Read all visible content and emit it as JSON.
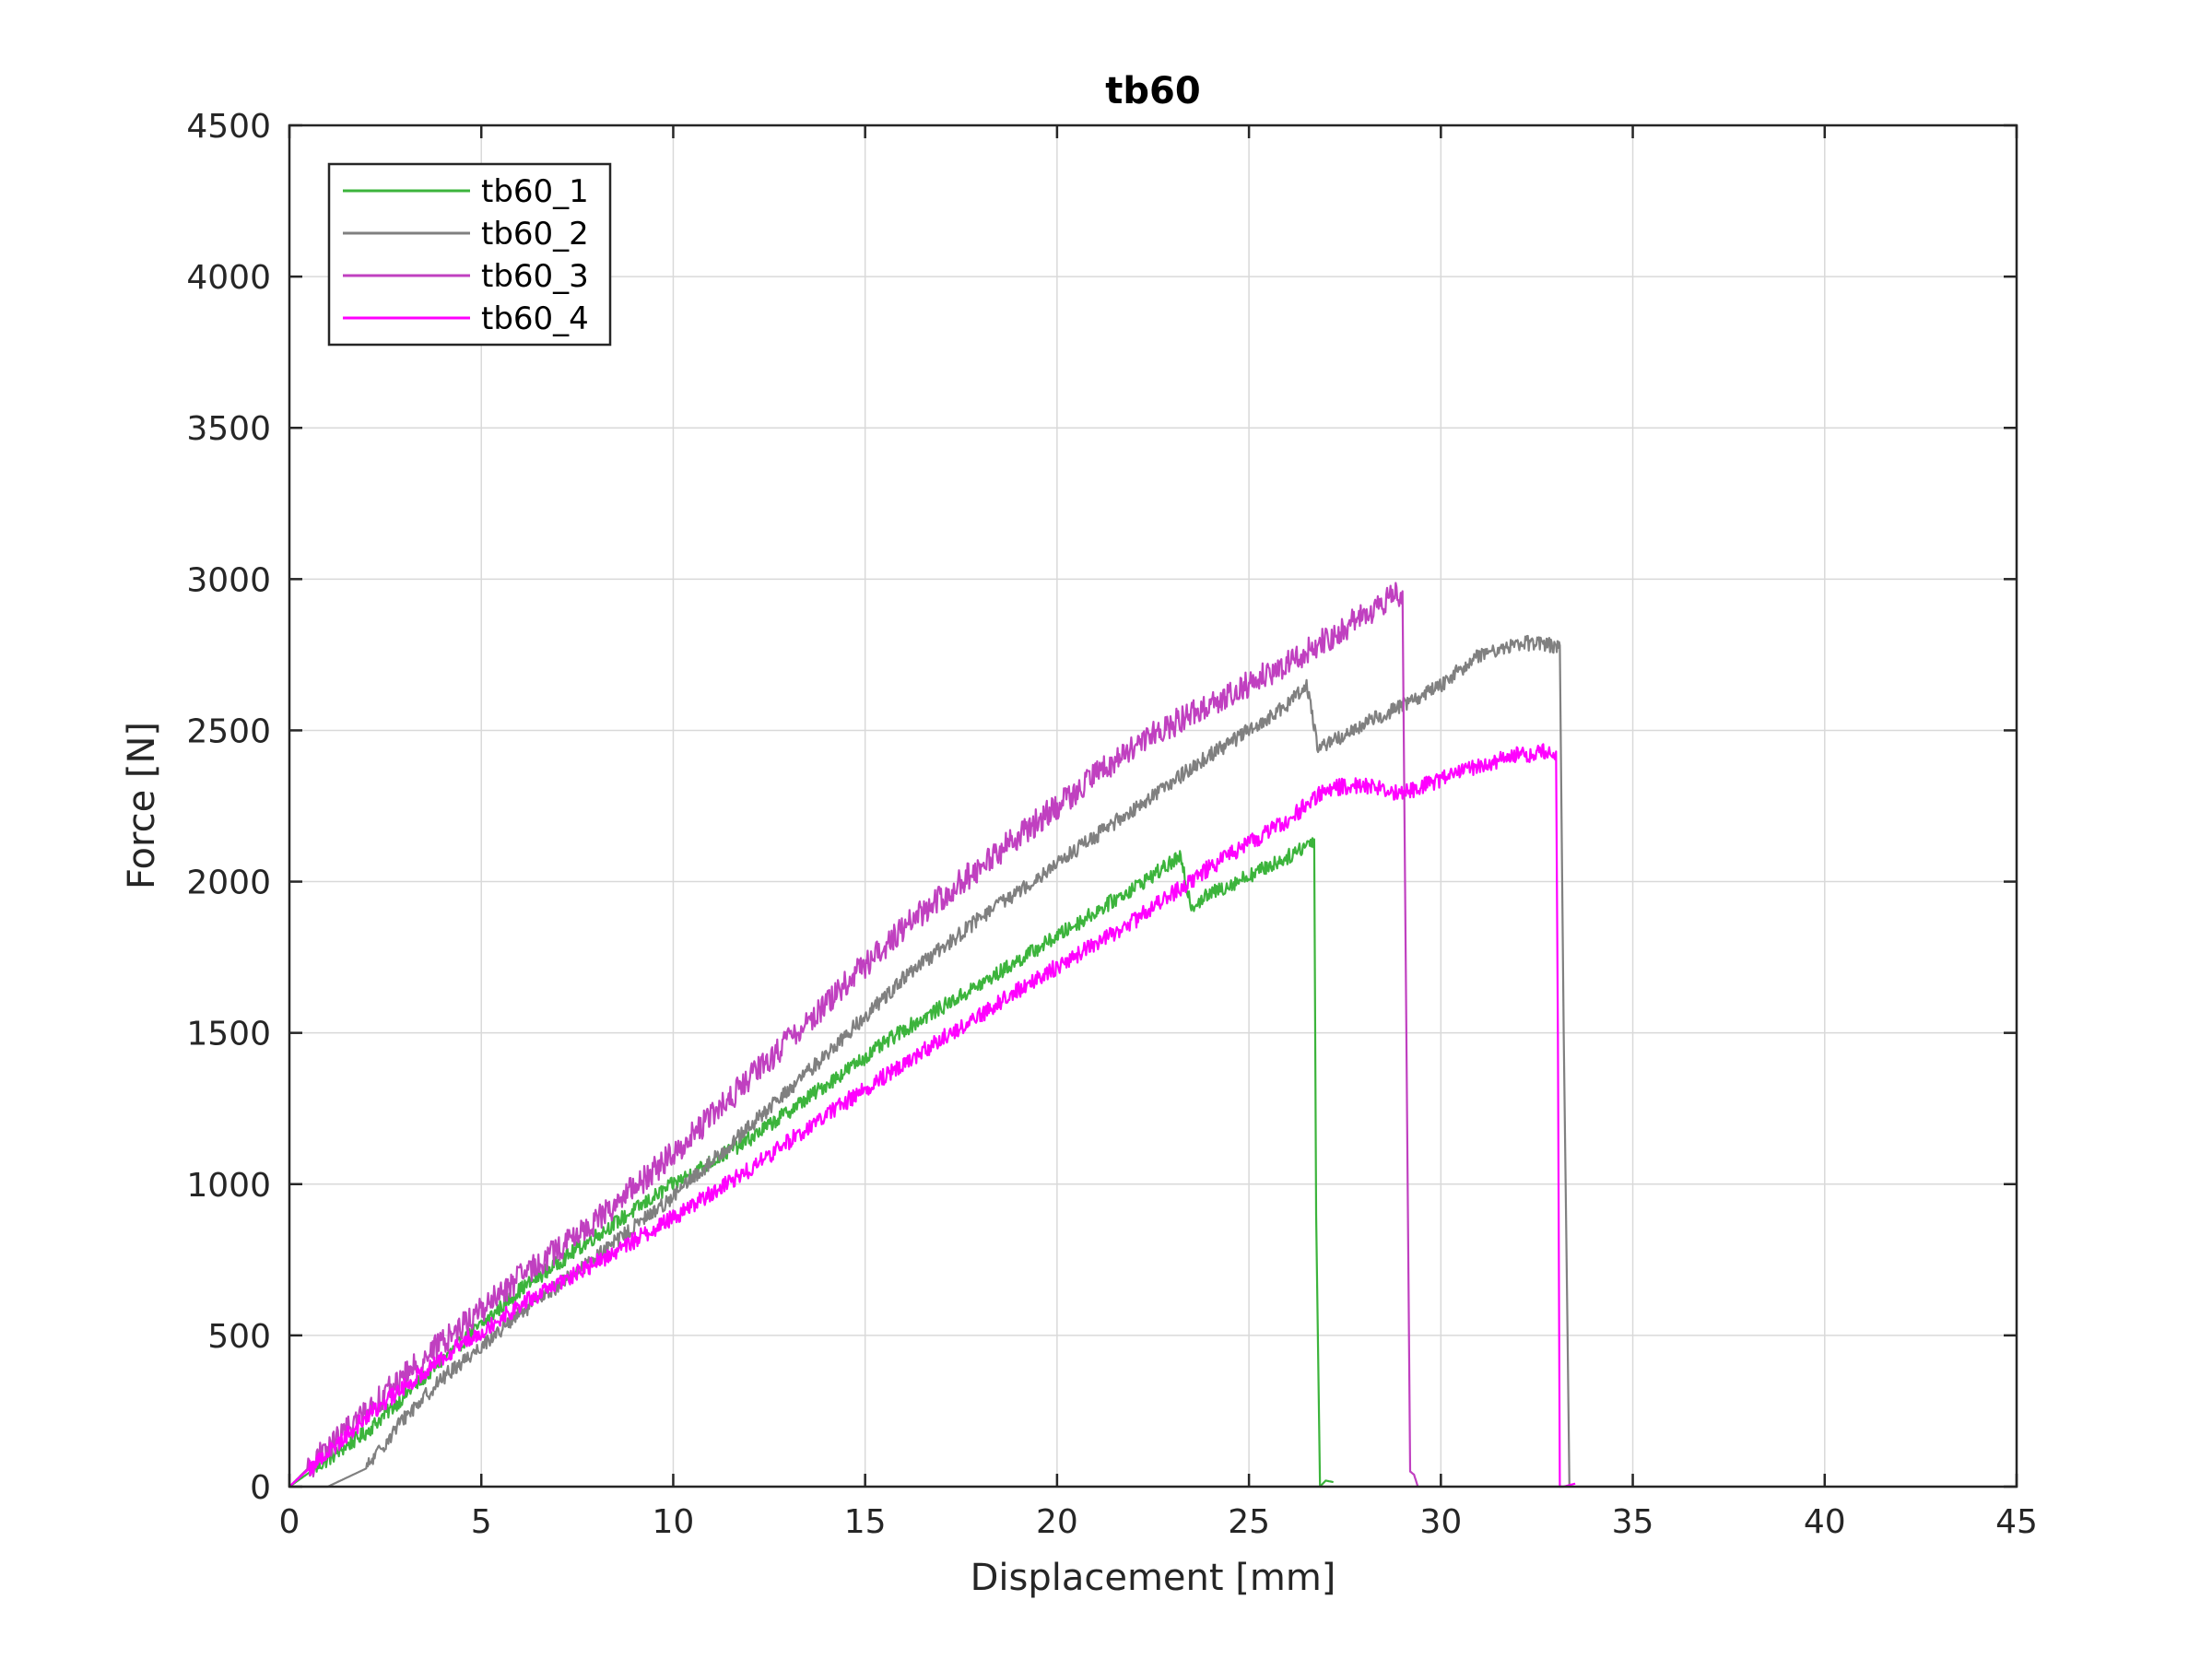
{
  "chart_data": {
    "type": "line",
    "title": "tb60",
    "xlabel": "Displacement [mm]",
    "ylabel": "Force [N]",
    "xlim": [
      0,
      45
    ],
    "ylim": [
      0,
      4500
    ],
    "xticks": [
      0,
      5,
      10,
      15,
      20,
      25,
      30,
      35,
      40,
      45
    ],
    "yticks": [
      0,
      500,
      1000,
      1500,
      2000,
      2500,
      3000,
      3500,
      4000,
      4500
    ],
    "grid": true,
    "legend_position": "top-left",
    "series": [
      {
        "name": "tb60_1",
        "color": "#3cb43c",
        "x": [
          0,
          2,
          4,
          6,
          8,
          10,
          12,
          14,
          16,
          18,
          20,
          22,
          23.2,
          23.5,
          24,
          25,
          26,
          26.7,
          26.75,
          26.85,
          27,
          27.2
        ],
        "y": [
          0,
          180,
          420,
          650,
          830,
          1000,
          1150,
          1330,
          1510,
          1660,
          1820,
          1980,
          2080,
          1920,
          1960,
          2020,
          2080,
          2140,
          900,
          0,
          20,
          15
        ],
        "noise": 25
      },
      {
        "name": "tb60_2",
        "color": "#808080",
        "x": [
          0,
          1,
          2,
          3,
          4,
          6,
          8,
          10,
          12,
          14,
          16,
          18,
          20,
          22,
          24,
          26,
          26.5,
          26.8,
          28,
          30,
          31,
          32,
          33,
          33.1,
          33.2,
          33.3,
          33.35
        ],
        "y": [
          0,
          0,
          60,
          230,
          360,
          570,
          760,
          960,
          1190,
          1430,
          1680,
          1880,
          2060,
          2240,
          2420,
          2580,
          2660,
          2440,
          2520,
          2650,
          2750,
          2790,
          2780,
          2780,
          1500,
          500,
          0
        ],
        "noise": 25
      },
      {
        "name": "tb60_3",
        "color": "#c040c0",
        "x": [
          0,
          2,
          4,
          6,
          8,
          10,
          12,
          14,
          16,
          18,
          20,
          22,
          24,
          26,
          28,
          29,
          29.1,
          29.2,
          29.3,
          29.4
        ],
        "y": [
          0,
          250,
          480,
          690,
          880,
          1100,
          1350,
          1600,
          1850,
          2050,
          2250,
          2450,
          2590,
          2720,
          2880,
          2960,
          1500,
          50,
          40,
          0
        ],
        "noise": 45
      },
      {
        "name": "tb60_4",
        "color": "#ff00ff",
        "x": [
          0,
          2,
          4,
          6,
          8,
          10,
          12,
          14,
          16,
          18,
          20,
          22,
          24,
          26,
          27,
          28,
          29,
          30,
          31,
          32,
          33,
          33.05,
          33.1,
          33.2,
          33.5
        ],
        "y": [
          0,
          230,
          430,
          600,
          740,
          890,
          1050,
          1230,
          1400,
          1560,
          1720,
          1870,
          2050,
          2200,
          2310,
          2320,
          2290,
          2340,
          2380,
          2420,
          2430,
          1500,
          0,
          0,
          10
        ],
        "noise": 28
      }
    ]
  }
}
